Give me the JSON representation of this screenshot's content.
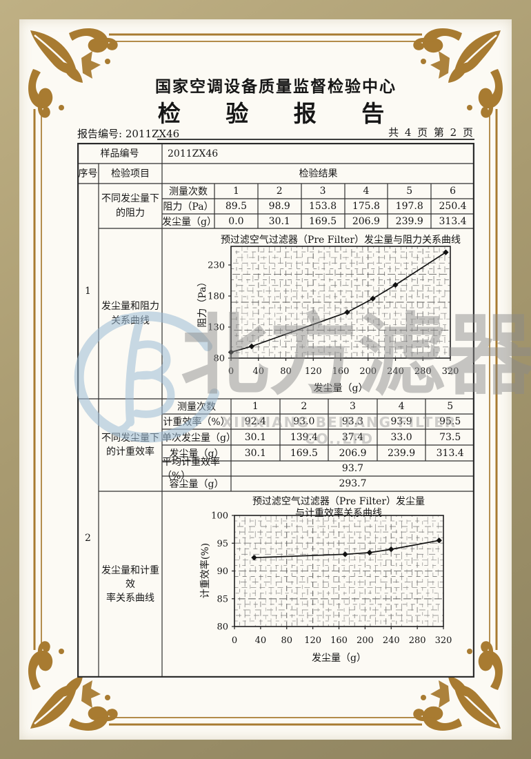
{
  "header": {
    "center_name": "国家空调设备质量监督检验中心",
    "report_title": "检 验 报 告",
    "report_no": "报告编号: 2011ZX46",
    "page_info": "共 4 页 第 2 页"
  },
  "table": {
    "sample_no_label": "样品编号",
    "sample_no_value": "2011ZX46",
    "col_seq": "序号",
    "col_item": "检验项目",
    "col_result": "检验结果",
    "sections": [
      {
        "seq": "1",
        "item1_lines": [
          "不同发尘量下",
          "的阻力"
        ],
        "item2_lines": [
          "发尘量和阻力",
          "关系曲线"
        ],
        "subtable": {
          "rows": [
            {
              "label": "测量次数",
              "values": [
                "1",
                "2",
                "3",
                "4",
                "5",
                "6"
              ]
            },
            {
              "label": "阻力（Pa）",
              "values": [
                "89.5",
                "98.9",
                "153.8",
                "175.8",
                "197.8",
                "250.4"
              ]
            },
            {
              "label": "发尘量（g）",
              "values": [
                "0.0",
                "30.1",
                "169.5",
                "206.9",
                "239.9",
                "313.4"
              ]
            }
          ]
        }
      },
      {
        "seq": "2",
        "item1_lines": [
          "不同发尘量下",
          "的计重效率"
        ],
        "item2_lines": [
          "发尘量和计重效",
          "率关系曲线"
        ],
        "subtable": {
          "rows": [
            {
              "label": "测量次数",
              "values": [
                "1",
                "2",
                "3",
                "4",
                "5"
              ]
            },
            {
              "label": "计重效率（%）",
              "values": [
                "92.4",
                "93.0",
                "93.3",
                "93.9",
                "95.5"
              ]
            },
            {
              "label": "单次发尘量（g）",
              "values": [
                "30.1",
                "139.4",
                "37.4",
                "33.0",
                "73.5"
              ]
            },
            {
              "label": "发尘量（g）",
              "values": [
                "30.1",
                "169.5",
                "206.9",
                "239.9",
                "313.4"
              ]
            }
          ],
          "span_rows": [
            {
              "label": "平均计重效率（%）",
              "value": "93.7"
            },
            {
              "label": "容尘量（g）",
              "value": "293.7"
            }
          ]
        }
      }
    ]
  },
  "chart_data": [
    {
      "type": "line",
      "title": "预过滤空气过滤器（Pre Filter）发尘量与阻力关系曲线",
      "xlabel": "发尘量（g）",
      "ylabel": "阻力（Pa）",
      "x": [
        0,
        30.1,
        169.5,
        206.9,
        239.9,
        313.4
      ],
      "y": [
        89.5,
        98.9,
        153.8,
        175.8,
        197.8,
        250.4
      ],
      "xlim": [
        0,
        320
      ],
      "ylim": [
        80,
        260
      ],
      "xticks": [
        0,
        40,
        80,
        120,
        160,
        200,
        240,
        280,
        320
      ],
      "yticks": [
        80,
        130,
        180,
        230
      ],
      "grid": "dense-dashed",
      "marker": "diamond",
      "legend_position": "none"
    },
    {
      "type": "line",
      "title": "预过滤空气过滤器（Pre Filter）发尘量",
      "title2": "与计重效率关系曲线",
      "xlabel": "发尘量（g）",
      "ylabel": "计重效率(%)",
      "x": [
        30.1,
        169.5,
        206.9,
        239.9,
        313.4
      ],
      "y": [
        92.4,
        93.0,
        93.3,
        93.9,
        95.5
      ],
      "xlim": [
        0,
        320
      ],
      "ylim": [
        80,
        100
      ],
      "xticks": [
        0,
        40,
        80,
        120,
        160,
        200,
        240,
        280,
        320
      ],
      "yticks": [
        80,
        85,
        90,
        95,
        100
      ],
      "grid": "dense-dashed",
      "marker": "diamond",
      "legend_position": "none"
    }
  ],
  "watermark": {
    "text_cn": [
      "北",
      "方",
      "滤",
      "器"
    ],
    "text_en": "XINXIANG BEIFANG FILTER CO.,LTD",
    "logo_color": "#9dbdd6",
    "gold_color": "#a87b31"
  }
}
